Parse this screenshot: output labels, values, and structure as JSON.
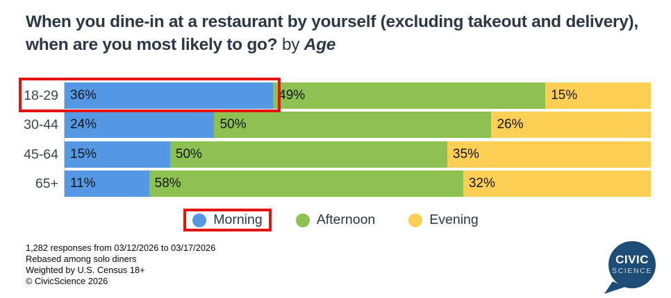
{
  "title": {
    "question": "When you dine-in at a restaurant by yourself (excluding takeout and delivery), when are you most likely to go?",
    "connector": "by",
    "dimension": "Age"
  },
  "chart_data": {
    "type": "bar",
    "orientation": "horizontal-stacked",
    "categories": [
      "18-29",
      "30-44",
      "45-64",
      "65+"
    ],
    "series": [
      {
        "name": "Morning",
        "color": "#5598E3",
        "values": [
          36,
          24,
          15,
          11
        ],
        "highlighted": true
      },
      {
        "name": "Afternoon",
        "color": "#8DC152",
        "values": [
          49,
          50,
          50,
          58
        ],
        "highlighted": false
      },
      {
        "name": "Evening",
        "color": "#FDCF55",
        "values": [
          15,
          26,
          35,
          32
        ],
        "highlighted": false
      }
    ],
    "value_suffix": "%",
    "xlim": [
      0,
      100
    ],
    "grid": false,
    "legend_position": "bottom",
    "annotations": {
      "highlight_color": "#E61212",
      "row_highlight": "18-29 Morning segment",
      "legend_highlight": "Morning"
    }
  },
  "footer": {
    "lines": [
      "1,282 responses from 03/12/2026 to 03/17/2026",
      "Rebased among solo diners",
      "Weighted by U.S. Census 18+",
      "© CivicScience 2026"
    ]
  },
  "logo": {
    "line1": "CIVIC",
    "line2": "SCIENCE",
    "color": "#1D4C77"
  }
}
